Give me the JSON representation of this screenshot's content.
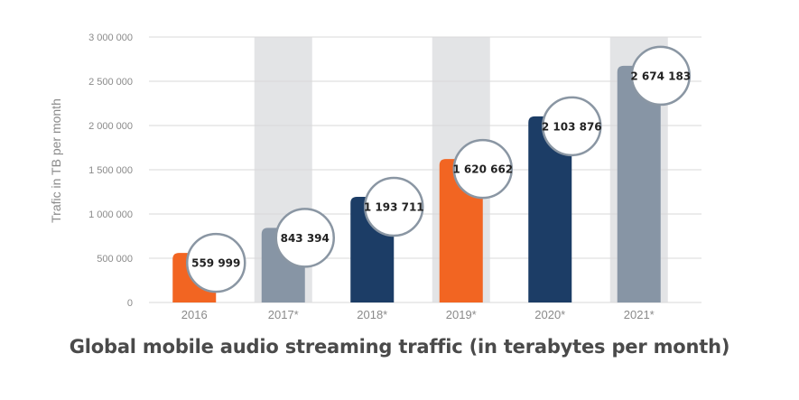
{
  "chart_data": {
    "type": "bar",
    "title": "Global mobile audio streaming traffic (in terabytes per month)",
    "ylabel": "Trafic in TB per month",
    "xlabel": "",
    "categories": [
      "2016",
      "2017*",
      "2018*",
      "2019*",
      "2020*",
      "2021*"
    ],
    "values": [
      559999,
      843394,
      1193711,
      1620662,
      2103876,
      2674183
    ],
    "data_labels": [
      "559 999",
      "843 394",
      "1 193 711",
      "1 620 662",
      "2 103 876",
      "2 674 183"
    ],
    "bar_colors": [
      "#f26522",
      "#8795a5",
      "#1c3d66",
      "#f26522",
      "#1c3d66",
      "#8795a5"
    ],
    "highlighted_categories": [
      "2017*",
      "2019*",
      "2021*"
    ],
    "highlight_color": "#e3e4e6",
    "ylim": [
      0,
      3000000
    ],
    "y_ticks": [
      0,
      500000,
      1000000,
      1500000,
      2000000,
      2500000,
      3000000
    ],
    "y_tick_labels": [
      "0",
      "500 000",
      "1 000 000",
      "1 500 000",
      "2 000 000",
      "2 500 000",
      "3 000 000"
    ],
    "grid": true,
    "legend": "none"
  }
}
